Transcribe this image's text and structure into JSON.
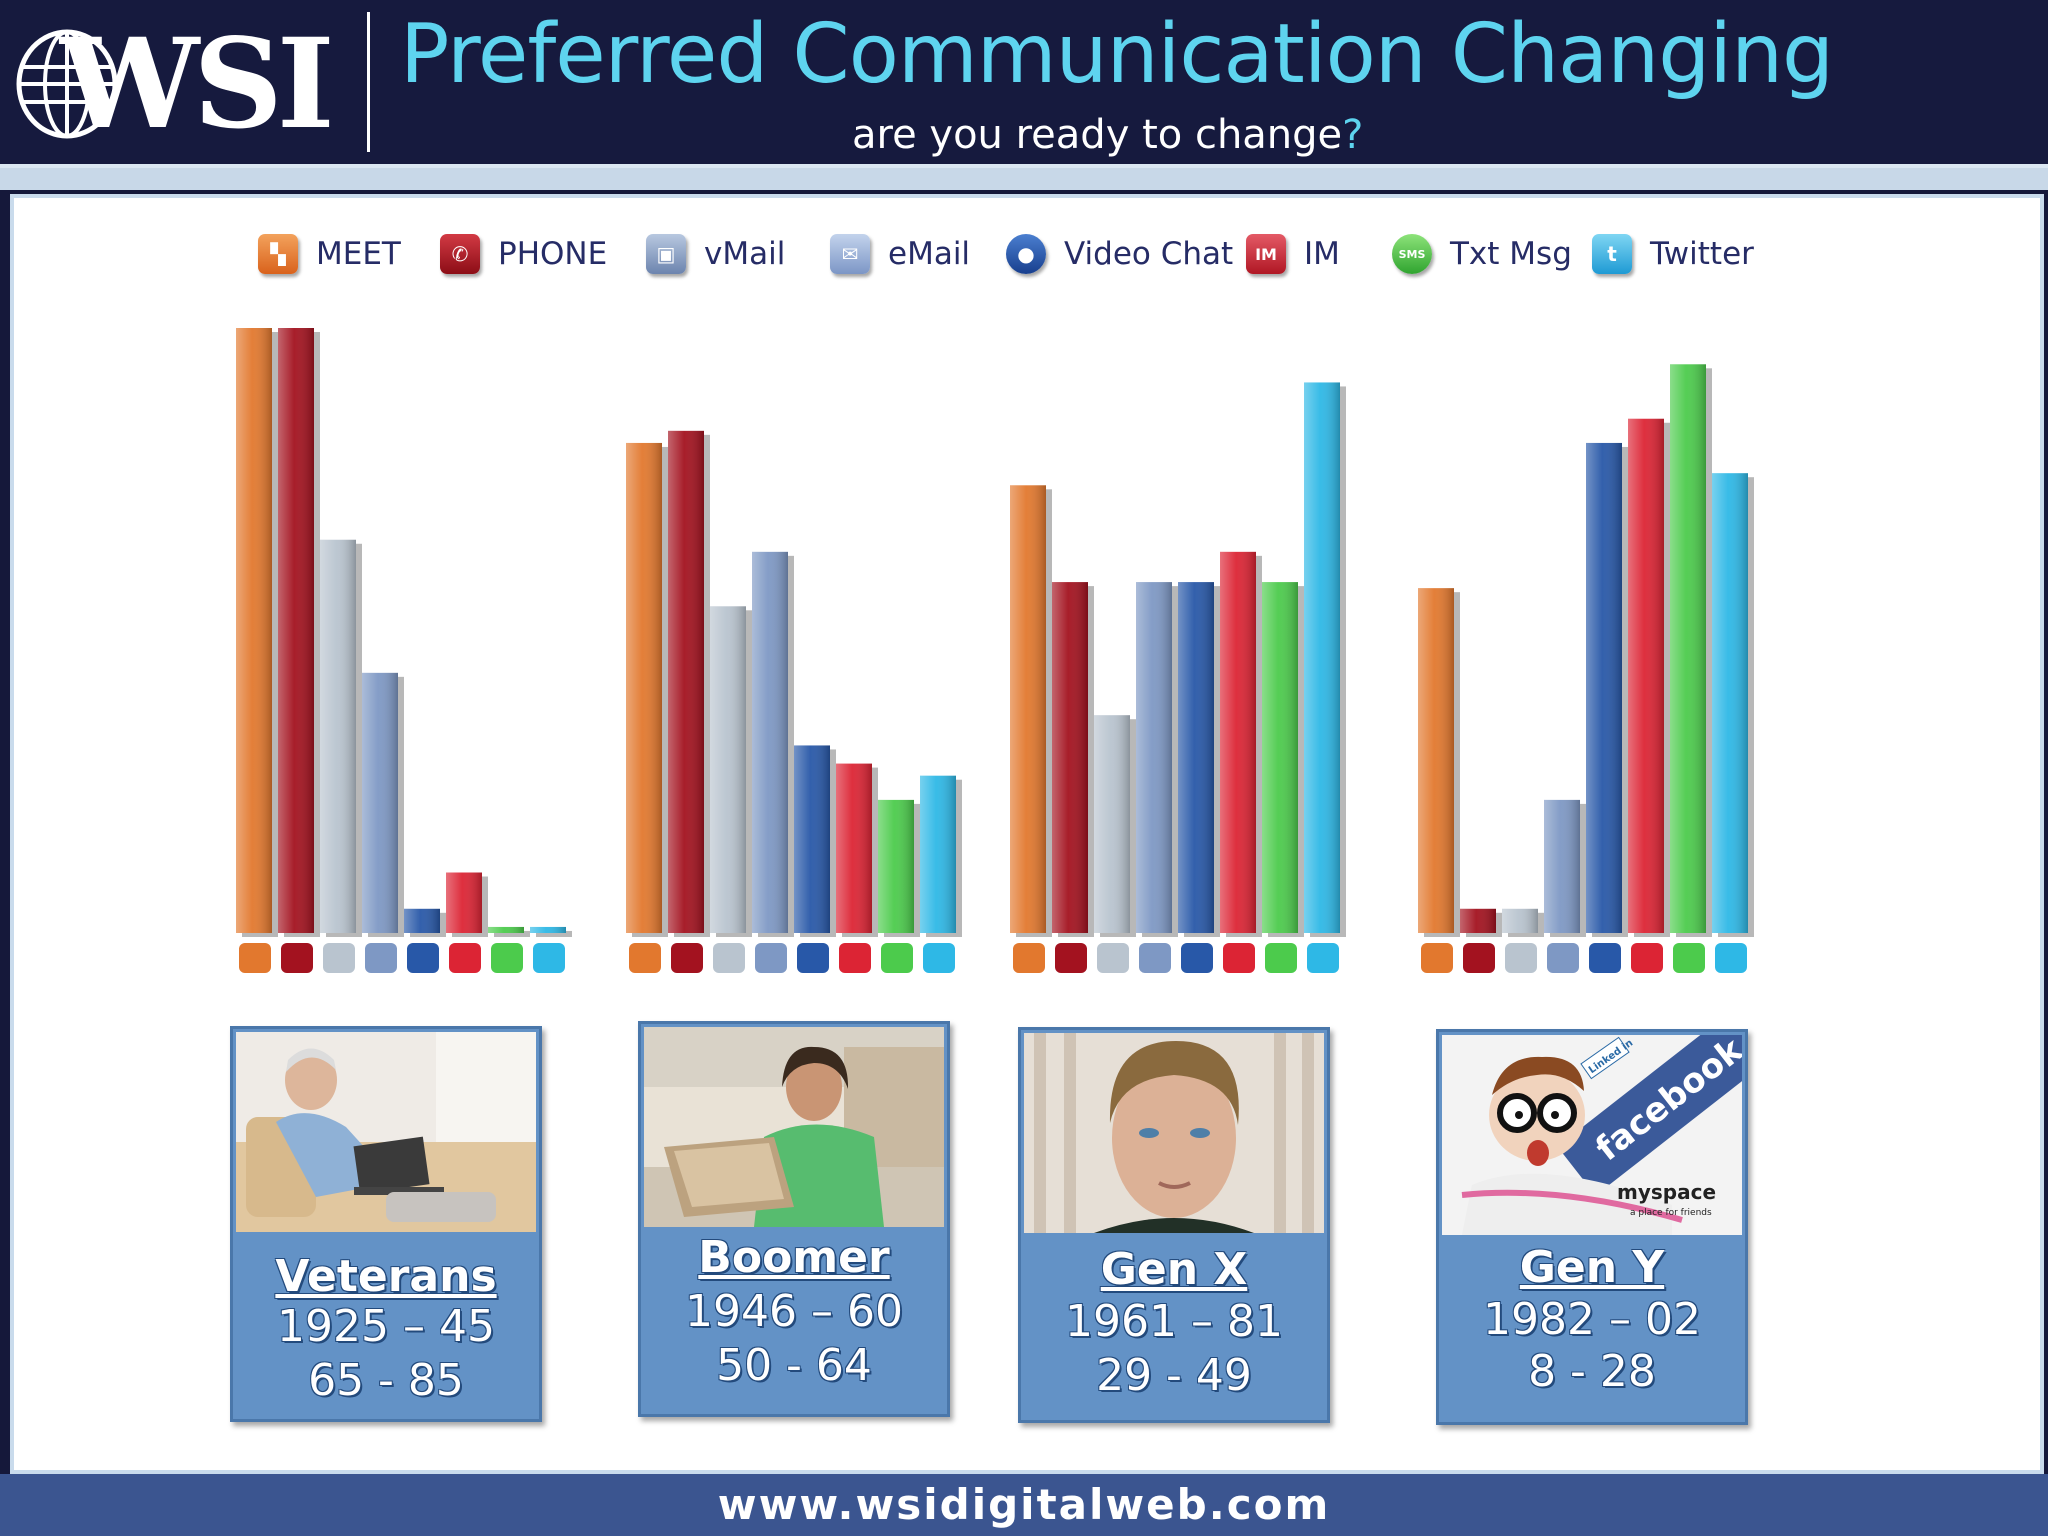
{
  "header": {
    "logo_text": "WSI",
    "title": "Preferred Communication Changing",
    "subtitle": "are you ready to change",
    "subtitle_mark": "?"
  },
  "legend": [
    {
      "label": "MEET",
      "icon": "meet-icon",
      "color": "#e2782e"
    },
    {
      "label": "PHONE",
      "icon": "phone-icon",
      "color": "#a3121f"
    },
    {
      "label": "vMail",
      "icon": "vmail-icon",
      "color": "#b9c4cf"
    },
    {
      "label": "eMail",
      "icon": "email-icon",
      "color": "#7e98c4"
    },
    {
      "label": "Video Chat",
      "icon": "video-chat-icon",
      "color": "#2858a8"
    },
    {
      "label": "IM",
      "icon": "im-icon",
      "color": "#dc2434"
    },
    {
      "label": "Txt Msg",
      "icon": "txt-msg-icon",
      "color": "#4ccb4c"
    },
    {
      "label": "Twitter",
      "icon": "twitter-icon",
      "color": "#2eb8e6"
    }
  ],
  "chart_data": {
    "type": "bar",
    "categories": [
      "Veterans",
      "Boomer",
      "Gen X",
      "Gen Y"
    ],
    "ylim": [
      0,
      100
    ],
    "series": [
      {
        "name": "MEET",
        "values": [
          100,
          81,
          74,
          57
        ]
      },
      {
        "name": "PHONE",
        "values": [
          100,
          83,
          58,
          4
        ]
      },
      {
        "name": "vMail",
        "values": [
          65,
          54,
          36,
          4
        ]
      },
      {
        "name": "eMail",
        "values": [
          43,
          63,
          58,
          22
        ]
      },
      {
        "name": "Video Chat",
        "values": [
          4,
          31,
          58,
          81
        ]
      },
      {
        "name": "IM",
        "values": [
          10,
          28,
          63,
          85
        ]
      },
      {
        "name": "Txt Msg",
        "values": [
          1,
          22,
          58,
          94
        ]
      },
      {
        "name": "Twitter",
        "values": [
          1,
          26,
          91,
          76
        ]
      }
    ]
  },
  "cards": [
    {
      "name": "Veterans",
      "years": "1925 – 45",
      "ages": "65 - 85"
    },
    {
      "name": "Boomer",
      "years": "1946 – 60",
      "ages": "50 - 64"
    },
    {
      "name": "Gen X",
      "years": "1961 – 81",
      "ages": "29 - 49"
    },
    {
      "name": "Gen Y",
      "years": "1982 – 02",
      "ages": "8 - 28"
    }
  ],
  "photo_text": {
    "linkedin": "Linked in",
    "facebook": "facebook.",
    "myspace": "myspace",
    "myspace_tag": "a place for friends"
  },
  "footer": {
    "url": "www.wsidigitalweb.com"
  }
}
